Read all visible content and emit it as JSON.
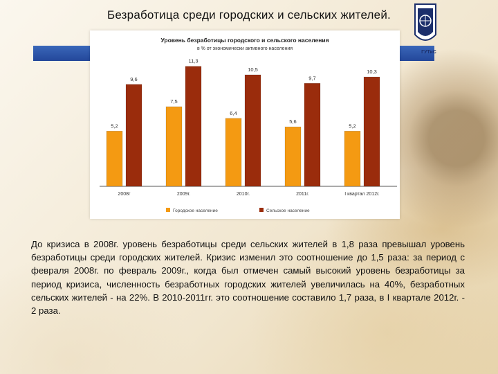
{
  "slide": {
    "title": "Безработица среди городских и сельских жителей.",
    "logo_caption": "ГУТиС",
    "paragraph": "До кризиса в 2008г. уровень безработицы среди сельских жителей в 1,8 раза превышал уровень безработицы среди городских жителей. Кризис изменил это соотношение до 1,5 раза: за период с февраля 2008г. по февраль 2009г., когда был отмечен самый высокий уровень безработицы за период кризиса, численность безработных городских жителей увеличилась на 40%, безработных сельских жителей - на 22%. В 2010-2011гг. это соотношение составило 1,7 раза, в I квартале 2012г. - 2 раза."
  },
  "colors": {
    "urban": "#f49a12",
    "rural": "#9a2c0c",
    "band": "#2d56a8"
  },
  "chart_data": {
    "type": "bar",
    "title": "Уровень безработицы городского и сельского населения",
    "subtitle": "в % от экономически активного населения",
    "categories": [
      "2008г",
      "2009г.",
      "2010г.",
      "2011г.",
      "I квартал 2012г."
    ],
    "series": [
      {
        "name": "Городское население",
        "values": [
          5.2,
          7.5,
          6.4,
          5.6,
          5.2
        ],
        "labels": [
          "5,2",
          "7,5",
          "6,4",
          "5,6",
          "5,2"
        ]
      },
      {
        "name": "Сельское население",
        "values": [
          9.6,
          11.3,
          10.5,
          9.7,
          10.3
        ],
        "labels": [
          "9,6",
          "11,3",
          "10,5",
          "9,7",
          "10,3"
        ]
      }
    ],
    "ylim": [
      0,
      12
    ],
    "grid": false,
    "legend": "bottom"
  }
}
